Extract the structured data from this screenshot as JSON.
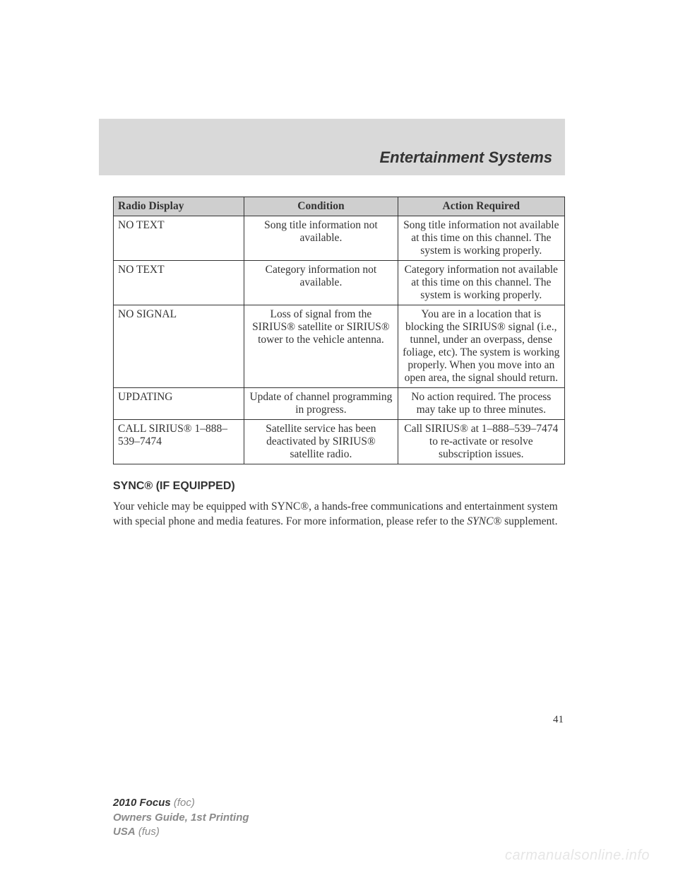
{
  "header": {
    "chapter_title": "Entertainment Systems"
  },
  "table": {
    "headers": {
      "col1": "Radio Display",
      "col2": "Condition",
      "col3": "Action Required"
    },
    "rows": [
      {
        "display": "NO TEXT",
        "condition": "Song title information not available.",
        "action": "Song title information not available at this time on this channel. The system is working properly."
      },
      {
        "display": "NO TEXT",
        "condition": "Category information not available.",
        "action": "Category information not available at this time on this channel. The system is working properly."
      },
      {
        "display": "NO SIGNAL",
        "condition": "Loss of signal from the SIRIUS® satellite or SIRIUS® tower to the vehicle antenna.",
        "action": "You are in a location that is blocking the SIRIUS® signal (i.e., tunnel, under an overpass, dense foliage, etc). The system is working properly. When you move into an open area, the signal should return."
      },
      {
        "display": "UPDATING",
        "condition": "Update of channel programming in progress.",
        "action": "No action required. The process may take up to three minutes."
      },
      {
        "display": "CALL SIRIUS® 1–888–539–7474",
        "condition": "Satellite service has been deactivated by SIRIUS® satellite radio.",
        "action": "Call SIRIUS® at 1–888–539–7474 to re-activate or resolve subscription issues."
      }
    ]
  },
  "section": {
    "heading": "SYNC® (IF EQUIPPED)",
    "body_pre": "Your vehicle may be equipped with SYNC®, a hands-free communications and entertainment system with special phone and media features. For more information, please refer to the ",
    "body_italic": "SYNC®",
    "body_post": " supplement."
  },
  "page_number": "41",
  "footer": {
    "line1_bold": "2010 Focus",
    "line1_gray": " (foc)",
    "line2": "Owners Guide, 1st Printing",
    "line3_bold": "USA",
    "line3_gray": " (fus)"
  },
  "watermark": "carmanualsonline.info"
}
